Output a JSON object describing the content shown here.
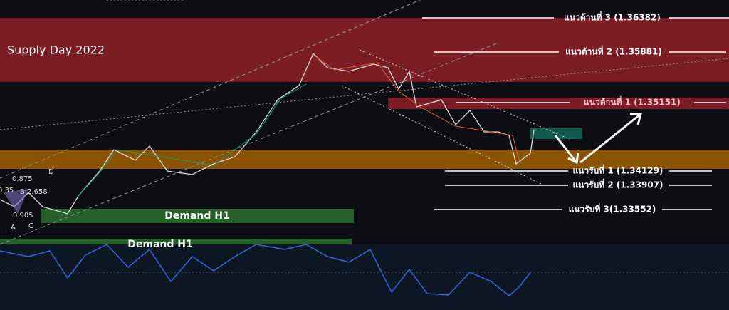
{
  "zones": {
    "supply": "Supply Day  2022",
    "demand": [
      "Demand H1",
      "Demand H1"
    ]
  },
  "resistance": [
    "แนวต้านที่ 3 (1.36382)",
    "แนวต้านที่ 2 (1.35881)",
    "แนวต้านที่ 1 (1.35151)"
  ],
  "support": [
    "แนวรับที่ 1 (1.34129)",
    "แนวรับที่ 2 (1.33907)",
    "แนวรับที่ 3(1.33552)"
  ],
  "pattern": {
    "ratios": [
      "0.875",
      "0.35",
      "2.658",
      "0.905"
    ],
    "points": [
      "A",
      "B",
      "C",
      "D"
    ]
  }
}
